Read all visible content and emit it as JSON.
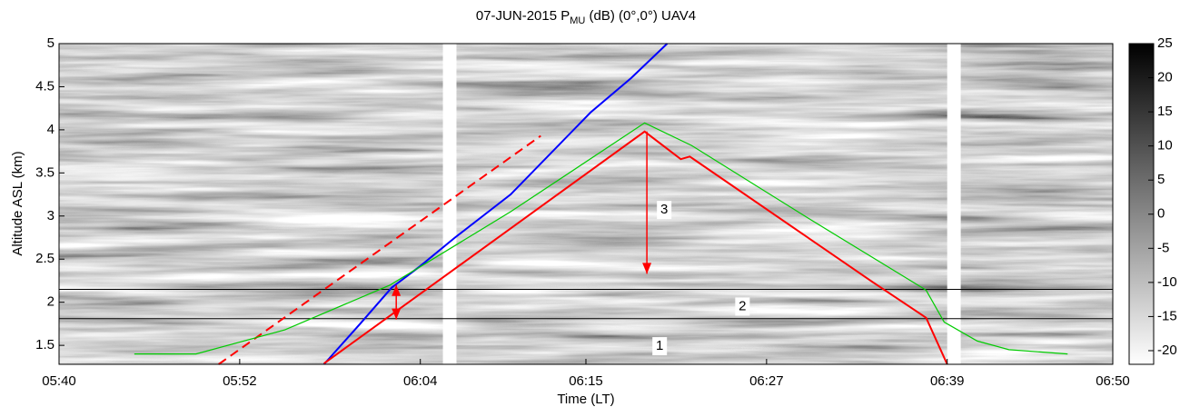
{
  "chart_data": {
    "type": "line",
    "title_main": "07-JUN-2015 P",
    "title_sub": "MU",
    "title_rest": " (dB) (0°,0°) UAV4",
    "xlabel": "Time (LT)",
    "ylabel": "Altitude ASL (km)",
    "xlim": [
      340,
      410
    ],
    "xticks": [
      {
        "value": 340,
        "label": "05:40"
      },
      {
        "value": 352,
        "label": "05:52"
      },
      {
        "value": 364,
        "label": "06:04"
      },
      {
        "value": 375,
        "label": "06:15"
      },
      {
        "value": 387,
        "label": "06:27"
      },
      {
        "value": 399,
        "label": "06:39"
      },
      {
        "value": 410,
        "label": "06:50"
      }
    ],
    "ylim": [
      1.28,
      5
    ],
    "yticks": [
      1.5,
      2,
      2.5,
      3,
      3.5,
      4,
      4.5,
      5
    ],
    "colormap": "gray",
    "clim": [
      -22,
      25
    ],
    "cticks": [
      25,
      20,
      15,
      10,
      5,
      0,
      -5,
      -10,
      -15,
      -20
    ],
    "gaps": [
      [
        365.5,
        366.4
      ],
      [
        399.0,
        399.9
      ]
    ],
    "hlines": [
      2.15,
      1.81
    ],
    "series": [
      {
        "color": "#0000ff",
        "dashed": false,
        "x": [
          357.6,
          360.0,
          362.1,
          364.0,
          366.3,
          370.0,
          375.3,
          378.0,
          380.4
        ],
        "y": [
          1.28,
          1.75,
          2.17,
          2.42,
          2.75,
          3.25,
          4.2,
          4.6,
          5.0
        ]
      },
      {
        "color": "#ff0000",
        "dashed": false,
        "x": [
          357.6,
          378.9,
          380.7,
          381.3,
          381.9,
          394.0,
          397.6,
          399.0
        ],
        "y": [
          1.29,
          3.98,
          3.74,
          3.66,
          3.69,
          2.24,
          1.82,
          1.28
        ]
      },
      {
        "color": "#ff0000",
        "dashed": true,
        "x": [
          350.6,
          372.0
        ],
        "y": [
          1.28,
          3.93
        ]
      },
      {
        "color": "#00cc00",
        "dashed": false,
        "x": [
          345.0,
          349.1,
          355.0,
          362.0,
          370.0,
          378.9,
          382.0,
          390.0,
          397.6,
          398.8,
          401.0,
          403.1,
          407.0
        ],
        "y": [
          1.4,
          1.4,
          1.68,
          2.2,
          3.05,
          4.08,
          3.82,
          2.95,
          2.14,
          1.77,
          1.55,
          1.45,
          1.4
        ]
      }
    ],
    "arrows": [
      {
        "x": 379.05,
        "from": 3.98,
        "to": 2.33,
        "color": "#ff0000",
        "double": false
      },
      {
        "x": 362.4,
        "from": 2.2,
        "to": 1.8,
        "color": "#ff0000",
        "double": true
      }
    ],
    "annotations": [
      {
        "text": "1",
        "x": 379.9,
        "y": 1.49
      },
      {
        "text": "2",
        "x": 385.4,
        "y": 1.95
      },
      {
        "text": "3",
        "x": 380.2,
        "y": 3.07
      }
    ]
  }
}
